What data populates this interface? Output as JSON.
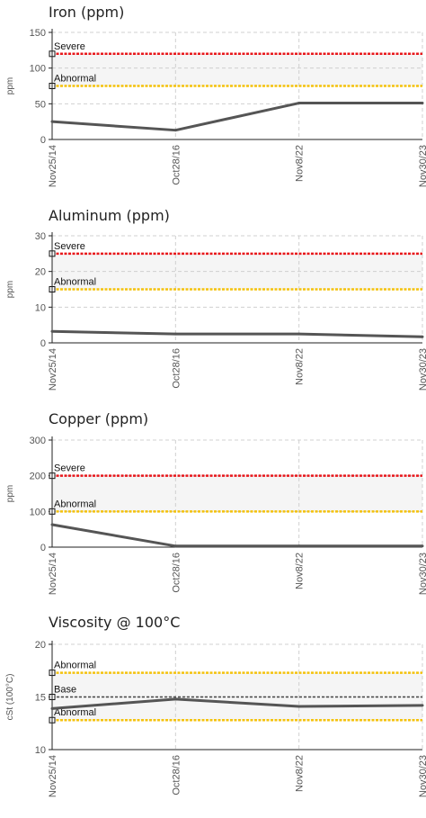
{
  "chart_data": [
    {
      "type": "line",
      "title": "Iron (ppm)",
      "ylabel": "ppm",
      "ylim": [
        0,
        150
      ],
      "yticks": [
        "0",
        "50",
        "100",
        "150"
      ],
      "x": [
        "Nov25/14",
        "Oct28/16",
        "Nov8/22",
        "Nov30/23"
      ],
      "series": [
        {
          "values": [
            25,
            13,
            51,
            51
          ]
        }
      ],
      "limits": [
        {
          "label": "Severe",
          "value": 120,
          "color": "#e8171b"
        },
        {
          "label": "Abnormal",
          "value": 75,
          "color": "#f4c20d"
        }
      ],
      "shaded_band": [
        75,
        120
      ],
      "grid": true
    },
    {
      "type": "line",
      "title": "Aluminum (ppm)",
      "ylabel": "ppm",
      "ylim": [
        0,
        30
      ],
      "yticks": [
        "0",
        "10",
        "20",
        "30"
      ],
      "x": [
        "Nov25/14",
        "Oct28/16",
        "Nov8/22",
        "Nov30/23"
      ],
      "series": [
        {
          "values": [
            3.2,
            2.5,
            2.5,
            1.7
          ]
        }
      ],
      "limits": [
        {
          "label": "Severe",
          "value": 25,
          "color": "#e8171b"
        },
        {
          "label": "Abnormal",
          "value": 15,
          "color": "#f4c20d"
        }
      ],
      "shaded_band": [
        15,
        25
      ],
      "grid": true
    },
    {
      "type": "line",
      "title": "Copper (ppm)",
      "ylabel": "ppm",
      "ylim": [
        0,
        300
      ],
      "yticks": [
        "0",
        "100",
        "200",
        "300"
      ],
      "x": [
        "Nov25/14",
        "Oct28/16",
        "Nov8/22",
        "Nov30/23"
      ],
      "series": [
        {
          "values": [
            63,
            3,
            3,
            3
          ]
        }
      ],
      "limits": [
        {
          "label": "Severe",
          "value": 200,
          "color": "#e8171b"
        },
        {
          "label": "Abnormal",
          "value": 100,
          "color": "#f4c20d"
        }
      ],
      "shaded_band": [
        100,
        200
      ],
      "grid": true
    },
    {
      "type": "line",
      "title": "Viscosity @ 100°C",
      "ylabel": "cSt (100°C)",
      "ylim": [
        10,
        20
      ],
      "yticks": [
        "10",
        "15",
        "20"
      ],
      "x": [
        "Nov25/14",
        "Oct28/16",
        "Nov8/22",
        "Nov30/23"
      ],
      "series": [
        {
          "values": [
            13.9,
            14.8,
            14.1,
            14.2
          ]
        }
      ],
      "limits": [
        {
          "label": "Abnormal",
          "value": 17.3,
          "color": "#f4c20d"
        },
        {
          "label": "Base",
          "value": 15.0,
          "color": "#444444"
        },
        {
          "label": "Abnormal",
          "value": 12.8,
          "color": "#f4c20d"
        }
      ],
      "shaded_band": [
        12.8,
        17.3
      ],
      "grid": true
    }
  ],
  "colors": {
    "series_line": "#555555",
    "grid": "#d0d0d0",
    "band_fill": "#f5f5f5",
    "axis": "#222222"
  }
}
